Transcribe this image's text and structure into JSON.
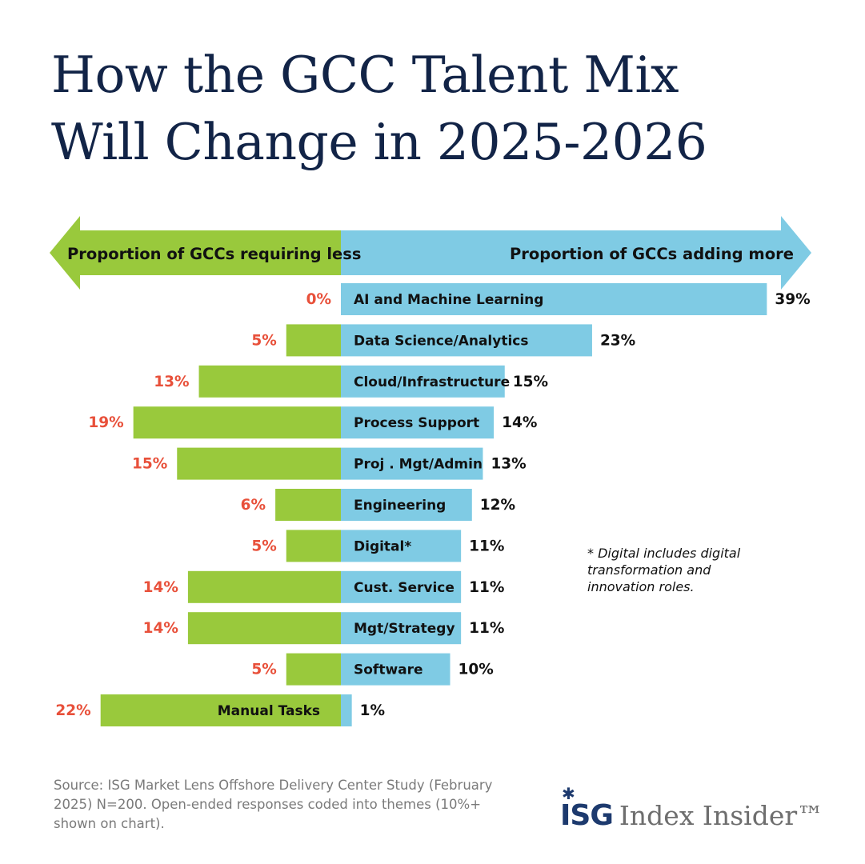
{
  "title_lines": [
    "How the GCC Talent Mix",
    "Will Change in 2025-2026"
  ],
  "colors": {
    "less": "#99c93c",
    "more": "#7fcbe4",
    "less_label": "#e8503a",
    "title": "#122447",
    "label": "#111111"
  },
  "chart_data": {
    "type": "bar",
    "orientation": "horizontal-diverging",
    "left_header": "Proportion of GCCs requiring less",
    "right_header": "Proportion of GCCs adding more",
    "categories": [
      "AI and Machine Learning",
      "Data Science/Analytics",
      "Cloud/Infrastructure",
      "Process Support",
      "Proj . Mgt/Admin",
      "Engineering",
      "Digital*",
      "Cust. Service",
      "Mgt/Strategy",
      "Software",
      "Manual Tasks"
    ],
    "series": [
      {
        "name": "Proportion of GCCs requiring less",
        "values": [
          0,
          5,
          13,
          19,
          15,
          6,
          5,
          14,
          14,
          5,
          22
        ],
        "labels": [
          "0%",
          "5%",
          "13%",
          "19%",
          "15%",
          "6%",
          "5%",
          "14%",
          "14%",
          "5%",
          "22%"
        ]
      },
      {
        "name": "Proportion of GCCs adding more",
        "values": [
          39,
          23,
          15,
          14,
          13,
          12,
          11,
          11,
          11,
          10,
          1
        ],
        "labels": [
          "39%",
          "23%",
          "15%",
          "14%",
          "13%",
          "12%",
          "11%",
          "11%",
          "11%",
          "10%",
          "1%"
        ]
      }
    ],
    "unit": "%"
  },
  "footnote": "* Digital includes digital transformation and innovation roles.",
  "source": "Source: ISG Market Lens Offshore Delivery Center Study (February 2025) N=200. Open-ended responses coded into themes (10%+ shown on chart).",
  "logo": {
    "mark": "ISG",
    "text": "Index Insider™"
  }
}
